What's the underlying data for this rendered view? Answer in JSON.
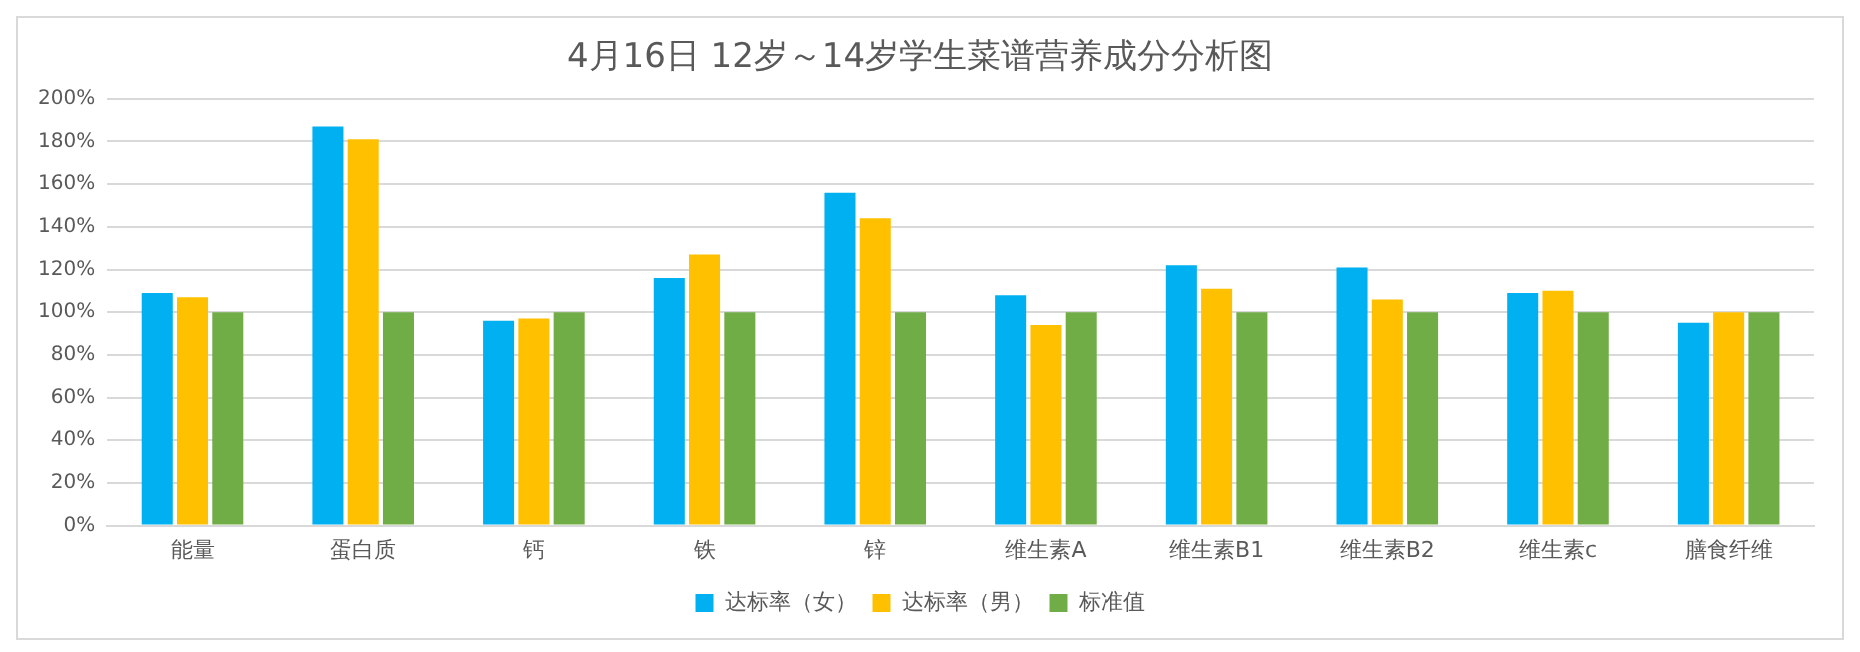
{
  "chart_data": {
    "type": "bar",
    "title": "4月16日 12岁～14岁学生菜谱营养成分分析图",
    "categories": [
      "能量",
      "蛋白质",
      "钙",
      "铁",
      "锌",
      "维生素A",
      "维生素B1",
      "维生素B2",
      "维生素c",
      "膳食纤维"
    ],
    "series": [
      {
        "name": "达标率（女）",
        "color": "#00b0f0",
        "values": [
          109,
          187,
          96,
          116,
          156,
          108,
          122,
          121,
          109,
          95
        ]
      },
      {
        "name": "达标率（男）",
        "color": "#ffc000",
        "values": [
          107,
          181,
          97,
          127,
          144,
          94,
          111,
          106,
          110,
          100
        ]
      },
      {
        "name": "标准值",
        "color": "#70ad47",
        "values": [
          100,
          100,
          100,
          100,
          100,
          100,
          100,
          100,
          100,
          100
        ]
      }
    ],
    "ylim": [
      0,
      200
    ],
    "yticks": [
      {
        "value": 0,
        "label": "0%"
      },
      {
        "value": 20,
        "label": "20%"
      },
      {
        "value": 40,
        "label": "40%"
      },
      {
        "value": 60,
        "label": "60%"
      },
      {
        "value": 80,
        "label": "80%"
      },
      {
        "value": 100,
        "label": "100%"
      },
      {
        "value": 120,
        "label": "120%"
      },
      {
        "value": 140,
        "label": "140%"
      },
      {
        "value": 160,
        "label": "160%"
      },
      {
        "value": 180,
        "label": "180%"
      },
      {
        "value": 200,
        "label": "200%"
      }
    ],
    "grid": "y",
    "legend": "bottom"
  }
}
